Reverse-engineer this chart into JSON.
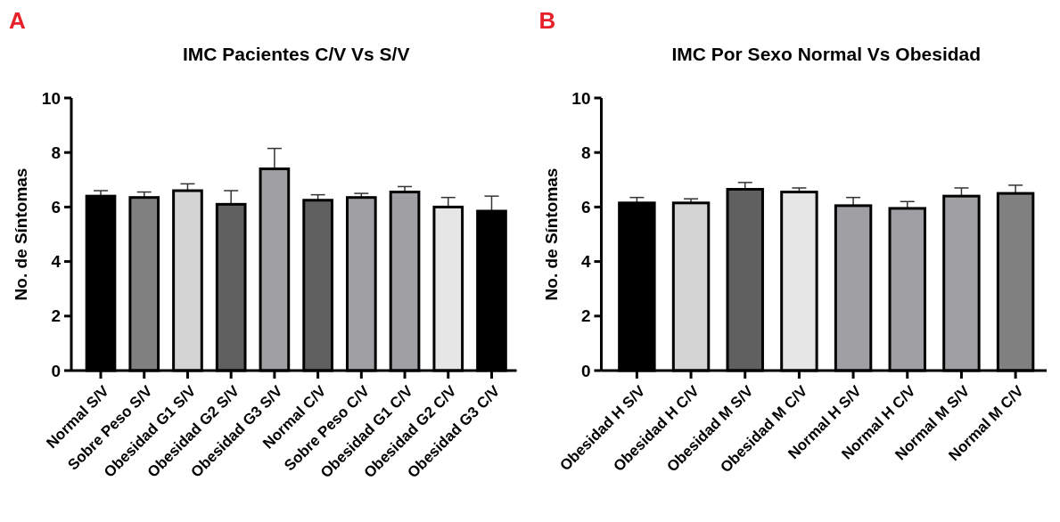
{
  "chart_data": [
    {
      "type": "bar",
      "title": "IMC Pacientes C/V Vs S/V",
      "ylabel": "No. de Síntomas",
      "annotations": [
        "A"
      ],
      "categories": [
        "Normal S/V",
        "Sobre Peso S/V",
        "Obesidad G1 S/V",
        "Obesidad G2 S/V",
        "Obesidad G3 S/V",
        "Normal C/V",
        "Sobre Peso C/V",
        "Obesidad G1 C/V",
        "Obesidad G2 C/V",
        "Obesidad G3 C/V"
      ],
      "values": [
        6.4,
        6.35,
        6.6,
        6.1,
        7.4,
        6.25,
        6.35,
        6.55,
        6.0,
        5.85
      ],
      "errors": [
        0.2,
        0.2,
        0.25,
        0.5,
        0.75,
        0.2,
        0.15,
        0.2,
        0.35,
        0.55
      ],
      "colors": [
        "#000000",
        "#808080",
        "#d4d4d4",
        "#606060",
        "#a0a0a4",
        "#606060",
        "#a0a0a4",
        "#a0a0a4",
        "#e6e6e6",
        "#000000"
      ],
      "ylim": [
        0,
        10
      ],
      "yticks": [
        0,
        2,
        4,
        6,
        8,
        10
      ],
      "grid": false
    },
    {
      "type": "bar",
      "title": "IMC Por Sexo Normal Vs Obesidad",
      "ylabel": "No. de Síntomas",
      "annotations": [
        "B"
      ],
      "categories": [
        "Obesidad H S/V",
        "Obesidad H C/V",
        "Obesidad M S/V",
        "Obesidad M C/V",
        "Normal H S/V",
        "Normal H C/V",
        "Normal M S/V",
        "Normal M C/V"
      ],
      "values": [
        6.15,
        6.15,
        6.65,
        6.55,
        6.05,
        5.95,
        6.4,
        6.5
      ],
      "errors": [
        0.2,
        0.15,
        0.25,
        0.15,
        0.3,
        0.25,
        0.3,
        0.3
      ],
      "colors": [
        "#000000",
        "#d4d4d4",
        "#606060",
        "#e6e6e6",
        "#a0a0a4",
        "#a0a0a4",
        "#a0a0a4",
        "#808080"
      ],
      "ylim": [
        0,
        10
      ],
      "yticks": [
        0,
        2,
        4,
        6,
        8,
        10
      ],
      "grid": false
    }
  ]
}
